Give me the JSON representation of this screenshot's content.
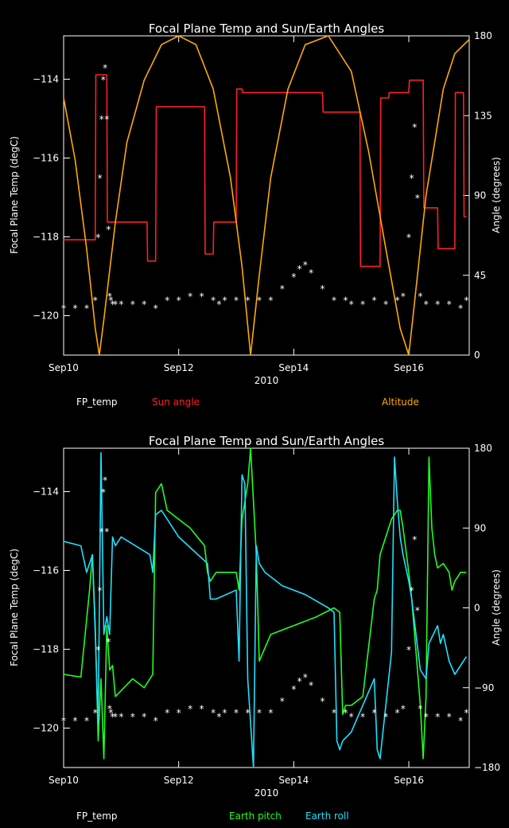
{
  "chart_data": [
    {
      "type": "line",
      "title": "Focal Plane Temp and Sun/Earth Angles",
      "xlabel": "2010",
      "ylabel": "Focal Plane Temp (degC)",
      "ylabel_right": "Angle (degrees)",
      "x_ticks": [
        "Sep10",
        "Sep12",
        "Sep14",
        "Sep16"
      ],
      "x_tick_days": [
        10,
        12,
        14,
        16
      ],
      "xlim": [
        10,
        17.05
      ],
      "ylim": [
        -121,
        -112.9
      ],
      "y_ticks": [
        -114,
        -116,
        -118,
        -120
      ],
      "ylim_right": [
        0,
        180
      ],
      "y_ticks_right": [
        0,
        45,
        90,
        135,
        180
      ],
      "legend": [
        "FP_temp",
        "Sun angle",
        "Altitude"
      ],
      "series": [
        {
          "name": "FP_temp",
          "axis": "left",
          "color": "#ffffff",
          "marker": "asterisk",
          "x": [
            10.0,
            10.2,
            10.4,
            10.55,
            10.6,
            10.63,
            10.66,
            10.69,
            10.72,
            10.75,
            10.78,
            10.8,
            10.82,
            10.85,
            10.9,
            11.0,
            11.2,
            11.4,
            11.6,
            11.8,
            12.0,
            12.2,
            12.4,
            12.6,
            12.7,
            12.8,
            13.0,
            13.2,
            13.4,
            13.6,
            13.8,
            14.0,
            14.1,
            14.2,
            14.3,
            14.5,
            14.7,
            14.9,
            15.0,
            15.2,
            15.4,
            15.6,
            15.8,
            15.9,
            16.0,
            16.05,
            16.1,
            16.15,
            16.2,
            16.3,
            16.5,
            16.7,
            16.9,
            17.0
          ],
          "y": [
            -119.8,
            -119.8,
            -119.8,
            -119.6,
            -118.0,
            -116.5,
            -115.0,
            -114.0,
            -113.7,
            -115.0,
            -117.8,
            -119.5,
            -119.6,
            -119.7,
            -119.7,
            -119.7,
            -119.7,
            -119.7,
            -119.8,
            -119.6,
            -119.6,
            -119.5,
            -119.5,
            -119.6,
            -119.7,
            -119.6,
            -119.6,
            -119.6,
            -119.6,
            -119.6,
            -119.3,
            -119.0,
            -118.8,
            -118.7,
            -118.9,
            -119.3,
            -119.6,
            -119.6,
            -119.7,
            -119.7,
            -119.6,
            -119.7,
            -119.6,
            -119.5,
            -118.0,
            -116.5,
            -115.2,
            -117.0,
            -119.5,
            -119.7,
            -119.7,
            -119.7,
            -119.8,
            -119.6
          ]
        },
        {
          "name": "Sun angle",
          "axis": "right",
          "color": "#ff2020",
          "x": [
            10.0,
            10.55,
            10.56,
            10.75,
            10.76,
            11.45,
            11.46,
            11.6,
            11.61,
            12.45,
            12.46,
            12.6,
            12.61,
            13.0,
            13.01,
            13.1,
            13.11,
            14.5,
            14.51,
            15.15,
            15.16,
            15.5,
            15.51,
            15.65,
            15.66,
            16.0,
            16.01,
            16.25,
            16.26,
            16.5,
            16.51,
            16.8,
            16.81,
            16.95,
            16.96,
            17.0
          ],
          "y": [
            65,
            65,
            158,
            158,
            75,
            75,
            53,
            53,
            140,
            140,
            57,
            57,
            75,
            75,
            150,
            150,
            148,
            148,
            137,
            137,
            50,
            50,
            145,
            145,
            148,
            148,
            155,
            155,
            83,
            83,
            60,
            60,
            148,
            148,
            78,
            78
          ]
        },
        {
          "name": "Altitude",
          "axis": "right",
          "color": "#ffaa00",
          "x": [
            10.0,
            10.2,
            10.4,
            10.55,
            10.62,
            10.7,
            10.9,
            11.1,
            11.4,
            11.7,
            12.0,
            12.3,
            12.6,
            12.9,
            13.1,
            13.25,
            13.4,
            13.6,
            13.9,
            14.2,
            14.6,
            15.0,
            15.3,
            15.6,
            15.85,
            16.0,
            16.1,
            16.3,
            16.6,
            16.8,
            17.05
          ],
          "y": [
            145,
            110,
            60,
            15,
            0,
            20,
            75,
            120,
            155,
            175,
            180,
            175,
            150,
            100,
            50,
            0,
            45,
            100,
            150,
            175,
            180,
            160,
            115,
            60,
            15,
            0,
            30,
            90,
            150,
            170,
            178
          ]
        }
      ]
    },
    {
      "type": "line",
      "title": "Focal Plane Temp and Sun/Earth Angles",
      "xlabel": "2010",
      "ylabel": "Focal Plane Temp (degC)",
      "ylabel_right": "Angle (degrees)",
      "x_ticks": [
        "Sep10",
        "Sep12",
        "Sep14",
        "Sep16"
      ],
      "x_tick_days": [
        10,
        12,
        14,
        16
      ],
      "xlim": [
        10,
        17.05
      ],
      "ylim": [
        -121,
        -112.9
      ],
      "y_ticks": [
        -114,
        -116,
        -118,
        -120
      ],
      "ylim_right": [
        -180,
        180
      ],
      "y_ticks_right": [
        -180,
        -90,
        0,
        90,
        180
      ],
      "legend": [
        "FP_temp",
        "Earth pitch",
        "Earth roll"
      ],
      "series": [
        {
          "name": "FP_temp",
          "axis": "left",
          "color": "#ffffff",
          "marker": "asterisk",
          "x": [
            10.0,
            10.2,
            10.4,
            10.55,
            10.6,
            10.63,
            10.66,
            10.69,
            10.72,
            10.75,
            10.78,
            10.8,
            10.82,
            10.85,
            10.9,
            11.0,
            11.2,
            11.4,
            11.6,
            11.8,
            12.0,
            12.2,
            12.4,
            12.6,
            12.7,
            12.8,
            13.0,
            13.2,
            13.4,
            13.6,
            13.8,
            14.0,
            14.1,
            14.2,
            14.3,
            14.5,
            14.7,
            14.9,
            15.0,
            15.2,
            15.4,
            15.6,
            15.8,
            15.9,
            16.0,
            16.05,
            16.1,
            16.15,
            16.2,
            16.3,
            16.5,
            16.7,
            16.9,
            17.0
          ],
          "y": [
            -119.8,
            -119.8,
            -119.8,
            -119.6,
            -118.0,
            -116.5,
            -115.0,
            -114.0,
            -113.7,
            -115.0,
            -117.8,
            -119.5,
            -119.6,
            -119.7,
            -119.7,
            -119.7,
            -119.7,
            -119.7,
            -119.8,
            -119.6,
            -119.6,
            -119.5,
            -119.5,
            -119.6,
            -119.7,
            -119.6,
            -119.6,
            -119.6,
            -119.6,
            -119.6,
            -119.3,
            -119.0,
            -118.8,
            -118.7,
            -118.9,
            -119.3,
            -119.6,
            -119.6,
            -119.7,
            -119.7,
            -119.6,
            -119.7,
            -119.6,
            -119.5,
            -118.0,
            -116.5,
            -115.2,
            -117.0,
            -119.5,
            -119.7,
            -119.7,
            -119.7,
            -119.8,
            -119.6
          ]
        },
        {
          "name": "Earth pitch",
          "axis": "right",
          "color": "#20ff20",
          "x": [
            10.0,
            10.3,
            10.45,
            10.5,
            10.55,
            10.6,
            10.65,
            10.7,
            10.75,
            10.8,
            10.85,
            10.9,
            11.2,
            11.4,
            11.55,
            11.6,
            11.7,
            11.8,
            12.2,
            12.45,
            12.5,
            12.55,
            12.65,
            13.0,
            13.05,
            13.1,
            13.2,
            13.25,
            13.3,
            13.35,
            13.4,
            13.6,
            14.0,
            14.4,
            14.7,
            14.8,
            14.85,
            14.9,
            15.0,
            15.2,
            15.4,
            15.45,
            15.5,
            15.7,
            15.8,
            15.85,
            15.9,
            16.0,
            16.05,
            16.2,
            16.25,
            16.3,
            16.35,
            16.4,
            16.45,
            16.5,
            16.6,
            16.7,
            16.75,
            16.8,
            16.9,
            17.0
          ],
          "y": [
            -75,
            -78,
            20,
            60,
            -20,
            -150,
            -80,
            -170,
            -20,
            -70,
            -65,
            -100,
            -80,
            -90,
            -75,
            130,
            140,
            110,
            90,
            70,
            40,
            30,
            40,
            40,
            20,
            100,
            140,
            180,
            120,
            60,
            -60,
            -30,
            -20,
            -10,
            0,
            -5,
            -120,
            -110,
            -110,
            -100,
            10,
            20,
            60,
            100,
            110,
            110,
            90,
            40,
            10,
            -110,
            -170,
            -100,
            170,
            90,
            60,
            45,
            50,
            40,
            20,
            30,
            40,
            40
          ]
        },
        {
          "name": "Earth roll",
          "axis": "right",
          "color": "#20e0ff",
          "x": [
            10.0,
            10.3,
            10.4,
            10.5,
            10.55,
            10.6,
            10.65,
            10.7,
            10.75,
            10.8,
            10.85,
            10.9,
            11.0,
            11.5,
            11.55,
            11.6,
            11.7,
            12.0,
            12.5,
            12.55,
            12.65,
            13.0,
            13.05,
            13.1,
            13.15,
            13.2,
            13.25,
            13.3,
            13.35,
            13.4,
            13.5,
            13.8,
            14.2,
            14.6,
            14.7,
            14.75,
            14.8,
            14.85,
            15.0,
            15.4,
            15.45,
            15.5,
            15.7,
            15.75,
            15.8,
            15.85,
            15.9,
            16.0,
            16.05,
            16.2,
            16.3,
            16.35,
            16.5,
            16.55,
            16.6,
            16.7,
            16.8,
            16.85,
            17.0
          ],
          "y": [
            75,
            70,
            40,
            60,
            -30,
            -130,
            175,
            -30,
            -10,
            -30,
            80,
            70,
            80,
            60,
            40,
            105,
            110,
            80,
            50,
            10,
            10,
            20,
            -60,
            150,
            140,
            -80,
            -130,
            -180,
            70,
            50,
            40,
            25,
            15,
            0,
            -5,
            -150,
            -160,
            -150,
            -140,
            -80,
            -160,
            -170,
            -50,
            170,
            120,
            80,
            60,
            30,
            10,
            -70,
            -80,
            -40,
            -20,
            -40,
            -30,
            -60,
            -75,
            -70,
            -55
          ]
        }
      ]
    }
  ]
}
